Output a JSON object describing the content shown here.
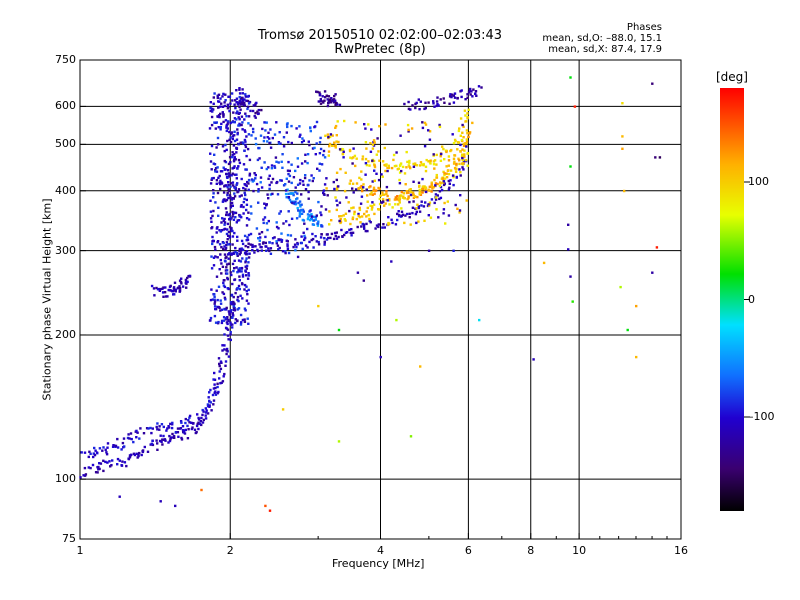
{
  "chart_data": {
    "type": "scatter",
    "title_line1": "Tromsø 20150510 02:02:00–02:03:43",
    "title_line2": "RwPretec (8p)",
    "xlabel": "Frequency [MHz]",
    "ylabel": "Stationary phase Virtual Height [km]",
    "x_scale": "log",
    "y_scale": "log",
    "xlim": [
      1,
      16
    ],
    "ylim": [
      75,
      750
    ],
    "x_ticks": [
      1,
      2,
      4,
      6,
      8,
      10,
      16
    ],
    "x_gridlines": [
      2,
      4,
      6,
      8,
      10
    ],
    "y_ticks": [
      75,
      100,
      200,
      300,
      400,
      500,
      600,
      750
    ],
    "y_gridlines": [
      100,
      200,
      300,
      400,
      500,
      600
    ],
    "phase_stats": {
      "heading": "Phases",
      "line_o": "mean, sd,O: –88.0, 15.1",
      "line_x": "mean, sd,X:  87.4, 17.9"
    },
    "colorbar": {
      "unit": "[deg]",
      "range": [
        -180,
        180
      ],
      "ticks": [
        {
          "value": 100,
          "label": "100"
        },
        {
          "value": 0,
          "label": "0"
        },
        {
          "value": -100,
          "label": "–100"
        }
      ]
    },
    "traces": [
      {
        "x": [
          1.0,
          1.1,
          1.2,
          1.3,
          1.45,
          1.6,
          1.75,
          1.85,
          1.95,
          2.0
        ],
        "y": [
          112,
          115,
          118,
          124,
          128,
          130,
          135,
          150,
          180,
          230
        ],
        "phase": -105
      },
      {
        "x": [
          1.0,
          1.1,
          1.2,
          1.3,
          1.4,
          1.5,
          1.6,
          1.7,
          1.8,
          1.9,
          2.0,
          2.05
        ],
        "y": [
          103,
          106,
          108,
          113,
          118,
          122,
          124,
          128,
          140,
          165,
          210,
          250
        ],
        "phase": -110
      },
      {
        "x": [
          1.95,
          1.97,
          2.0,
          2.03,
          2.07,
          2.1
        ],
        "y": [
          250,
          320,
          400,
          500,
          600,
          650
        ],
        "phase": -112
      },
      {
        "x": [
          1.4,
          1.5,
          1.55,
          1.6,
          1.65
        ],
        "y": [
          248,
          246,
          250,
          255,
          262
        ],
        "phase": -115
      },
      {
        "x": [
          2.05,
          2.2,
          2.4,
          2.7,
          3.0,
          3.3,
          3.6,
          4.0,
          4.5,
          5.0,
          5.5,
          5.9
        ],
        "y": [
          300,
          303,
          308,
          312,
          318,
          325,
          333,
          342,
          355,
          378,
          410,
          470
        ],
        "phase": -110
      },
      {
        "x": [
          3.3,
          3.6,
          4.0,
          4.4,
          4.8,
          5.2,
          5.6,
          5.9,
          6.0
        ],
        "y": [
          350,
          360,
          372,
          386,
          400,
          418,
          440,
          480,
          550
        ],
        "phase": 100
      },
      {
        "x": [
          3.5,
          3.8,
          4.1,
          4.5,
          4.9,
          5.3,
          5.7,
          6.0
        ],
        "y": [
          420,
          402,
          390,
          392,
          400,
          420,
          470,
          520
        ],
        "phase": 115
      },
      {
        "x": [
          3.1,
          3.4,
          3.8,
          4.3,
          4.8,
          5.3,
          5.8,
          6.0
        ],
        "y": [
          520,
          480,
          455,
          448,
          455,
          470,
          520,
          600
        ],
        "phase": 95
      },
      {
        "x": [
          2.05,
          2.2,
          2.3
        ],
        "y": [
          620,
          600,
          580
        ],
        "phase": -120
      },
      {
        "x": [
          3.0,
          3.1,
          3.2,
          3.3
        ],
        "y": [
          640,
          620,
          610,
          630
        ],
        "phase": -130
      },
      {
        "x": [
          4.5,
          5.0,
          5.5,
          6.0,
          6.3
        ],
        "y": [
          600,
          610,
          620,
          640,
          650
        ],
        "phase": -120
      },
      {
        "x": [
          2.6,
          2.7,
          2.8,
          2.9,
          3.0
        ],
        "y": [
          400,
          380,
          360,
          350,
          345
        ],
        "phase": -60
      }
    ],
    "isolated_points": [
      {
        "x": 1.2,
        "y": 92,
        "phase": -110
      },
      {
        "x": 1.45,
        "y": 90,
        "phase": -110
      },
      {
        "x": 1.55,
        "y": 88,
        "phase": -110
      },
      {
        "x": 1.75,
        "y": 95,
        "phase": 140
      },
      {
        "x": 2.35,
        "y": 88,
        "phase": 150
      },
      {
        "x": 2.4,
        "y": 86,
        "phase": 170
      },
      {
        "x": 2.55,
        "y": 140,
        "phase": 100
      },
      {
        "x": 3.0,
        "y": 230,
        "phase": 100
      },
      {
        "x": 3.3,
        "y": 205,
        "phase": 20
      },
      {
        "x": 3.3,
        "y": 120,
        "phase": 60
      },
      {
        "x": 3.6,
        "y": 270,
        "phase": -120
      },
      {
        "x": 3.7,
        "y": 260,
        "phase": -130
      },
      {
        "x": 4.0,
        "y": 180,
        "phase": -110
      },
      {
        "x": 4.2,
        "y": 285,
        "phase": -110
      },
      {
        "x": 4.3,
        "y": 215,
        "phase": 60
      },
      {
        "x": 4.6,
        "y": 123,
        "phase": 50
      },
      {
        "x": 4.8,
        "y": 172,
        "phase": 110
      },
      {
        "x": 5.0,
        "y": 300,
        "phase": -120
      },
      {
        "x": 5.6,
        "y": 300,
        "phase": -90
      },
      {
        "x": 6.3,
        "y": 215,
        "phase": -20
      },
      {
        "x": 8.1,
        "y": 178,
        "phase": -110
      },
      {
        "x": 8.5,
        "y": 283,
        "phase": 110
      },
      {
        "x": 9.5,
        "y": 340,
        "phase": -120
      },
      {
        "x": 9.5,
        "y": 302,
        "phase": -110
      },
      {
        "x": 9.6,
        "y": 265,
        "phase": -120
      },
      {
        "x": 9.7,
        "y": 235,
        "phase": 30
      },
      {
        "x": 9.6,
        "y": 450,
        "phase": 20
      },
      {
        "x": 9.6,
        "y": 690,
        "phase": 20
      },
      {
        "x": 9.8,
        "y": 600,
        "phase": 170
      },
      {
        "x": 12.2,
        "y": 610,
        "phase": 90
      },
      {
        "x": 12.2,
        "y": 520,
        "phase": 110
      },
      {
        "x": 12.2,
        "y": 490,
        "phase": 120
      },
      {
        "x": 12.3,
        "y": 400,
        "phase": 110
      },
      {
        "x": 12.1,
        "y": 252,
        "phase": 60
      },
      {
        "x": 12.5,
        "y": 205,
        "phase": 20
      },
      {
        "x": 13.0,
        "y": 230,
        "phase": 120
      },
      {
        "x": 13.0,
        "y": 180,
        "phase": 110
      },
      {
        "x": 14.0,
        "y": 670,
        "phase": -140
      },
      {
        "x": 14.2,
        "y": 470,
        "phase": -140
      },
      {
        "x": 14.3,
        "y": 305,
        "phase": 170
      },
      {
        "x": 14.0,
        "y": 270,
        "phase": -120
      },
      {
        "x": 14.5,
        "y": 470,
        "phase": -150
      }
    ]
  }
}
